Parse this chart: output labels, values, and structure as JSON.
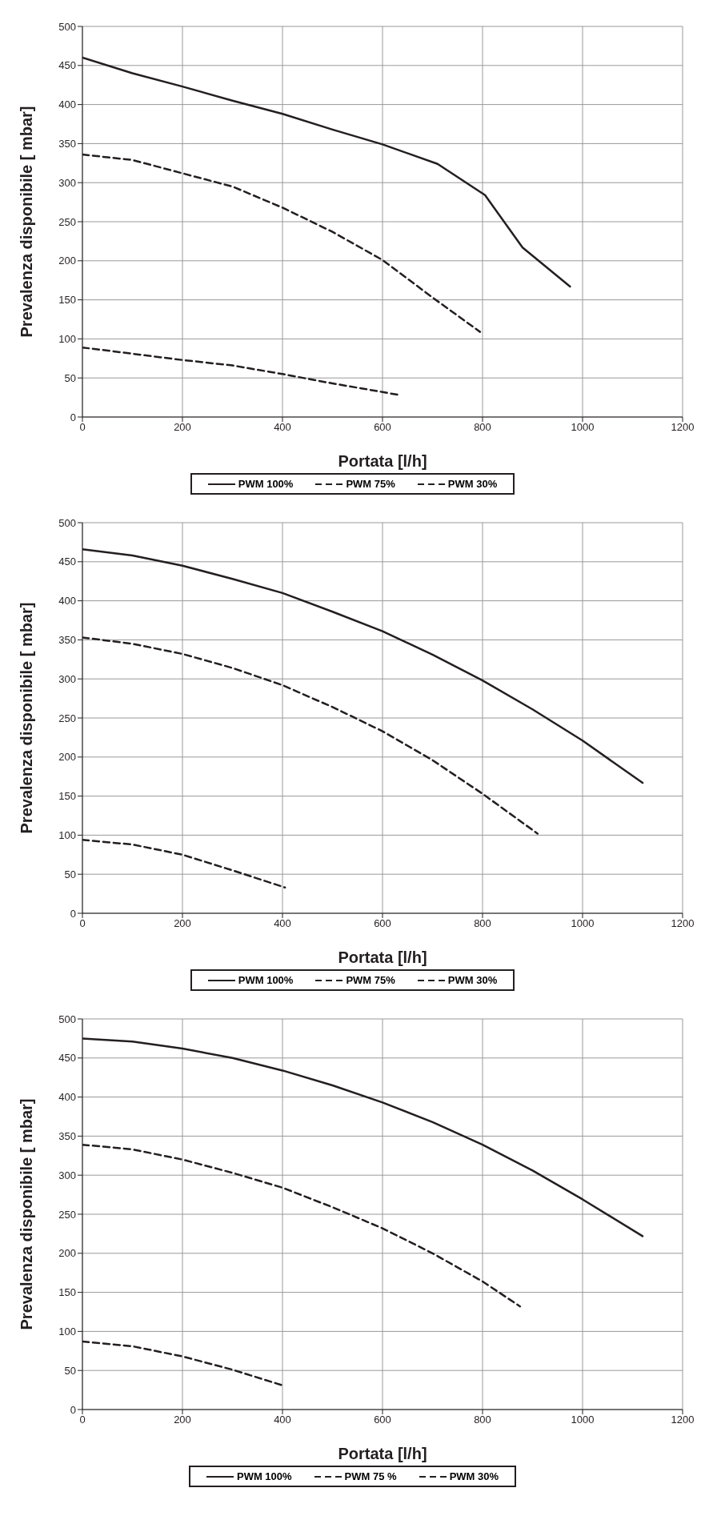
{
  "chart_data": [
    {
      "type": "line",
      "xlabel": "Portata [l/h]",
      "ylabel": "Prevalenza disponibile [ mbar]",
      "xlim": [
        0,
        1200
      ],
      "xticks": [
        0,
        200,
        400,
        600,
        800,
        1000,
        1200
      ],
      "ylim": [
        0,
        500
      ],
      "yticks": [
        0,
        50,
        100,
        150,
        200,
        250,
        300,
        350,
        400,
        450,
        500
      ],
      "grid": true,
      "legend": "bottom",
      "marker": "none",
      "series": [
        {
          "name": "PWM 100%",
          "color": "#231f20",
          "line_style": "solid",
          "x": [
            0,
            100,
            200,
            300,
            400,
            500,
            600,
            710,
            805,
            880,
            975
          ],
          "values": [
            460,
            440,
            423,
            405,
            388,
            368,
            349,
            324,
            284,
            217,
            167
          ]
        },
        {
          "name": "PWM 75%",
          "color": "#231f20",
          "line_style": "dashed",
          "x": [
            0,
            100,
            200,
            300,
            400,
            500,
            600,
            700,
            795
          ],
          "values": [
            336,
            329,
            312,
            295,
            268,
            237,
            201,
            153,
            109
          ]
        },
        {
          "name": "PWM 30%",
          "color": "#231f20",
          "line_style": "dashed",
          "x": [
            0,
            100,
            200,
            300,
            400,
            500,
            600,
            635
          ],
          "values": [
            89,
            81,
            73,
            66,
            55,
            43,
            32,
            28
          ]
        }
      ]
    },
    {
      "type": "line",
      "xlabel": "Portata [l/h]",
      "ylabel": "Prevalenza disponibile [ mbar]",
      "xlim": [
        0,
        1200
      ],
      "xticks": [
        0,
        200,
        400,
        600,
        800,
        1000,
        1200
      ],
      "ylim": [
        0,
        500
      ],
      "yticks": [
        0,
        50,
        100,
        150,
        200,
        250,
        300,
        350,
        400,
        450,
        500
      ],
      "grid": true,
      "legend": "bottom",
      "marker": "none",
      "series": [
        {
          "name": "PWM 100%",
          "color": "#231f20",
          "line_style": "solid",
          "x": [
            0,
            100,
            200,
            300,
            400,
            500,
            600,
            700,
            800,
            900,
            1000,
            1120
          ],
          "values": [
            466,
            458,
            445,
            428,
            410,
            386,
            361,
            331,
            298,
            261,
            221,
            167
          ]
        },
        {
          "name": "PWM 75%",
          "color": "#231f20",
          "line_style": "dashed",
          "x": [
            0,
            100,
            200,
            300,
            400,
            500,
            600,
            700,
            800,
            910
          ],
          "values": [
            353,
            345,
            332,
            314,
            292,
            264,
            233,
            196,
            153,
            102
          ]
        },
        {
          "name": "PWM 30%",
          "color": "#231f20",
          "line_style": "dashed",
          "x": [
            0,
            100,
            200,
            300,
            405
          ],
          "values": [
            94,
            88,
            75,
            55,
            33
          ]
        }
      ]
    },
    {
      "type": "line",
      "xlabel": "Portata [l/h]",
      "ylabel": "Prevalenza disponibile [ mbar]",
      "xlim": [
        0,
        1200
      ],
      "xticks": [
        0,
        200,
        400,
        600,
        800,
        1000,
        1200
      ],
      "ylim": [
        0,
        500
      ],
      "yticks": [
        0,
        50,
        100,
        150,
        200,
        250,
        300,
        350,
        400,
        450,
        500
      ],
      "grid": true,
      "legend": "bottom",
      "marker": "none",
      "series": [
        {
          "name": "PWM 100%",
          "color": "#231f20",
          "line_style": "solid",
          "x": [
            0,
            100,
            200,
            300,
            400,
            500,
            600,
            700,
            800,
            900,
            1000,
            1120
          ],
          "values": [
            475,
            471,
            462,
            450,
            434,
            415,
            393,
            368,
            339,
            306,
            269,
            222
          ]
        },
        {
          "name": "PWM 75 %",
          "color": "#231f20",
          "line_style": "dashed",
          "x": [
            0,
            100,
            200,
            300,
            400,
            500,
            600,
            700,
            800,
            875
          ],
          "values": [
            339,
            333,
            320,
            303,
            284,
            259,
            232,
            200,
            164,
            132
          ]
        },
        {
          "name": "PWM 30%",
          "color": "#231f20",
          "line_style": "dashed",
          "x": [
            0,
            100,
            200,
            300,
            400
          ],
          "values": [
            87,
            81,
            68,
            51,
            31
          ]
        }
      ]
    }
  ]
}
